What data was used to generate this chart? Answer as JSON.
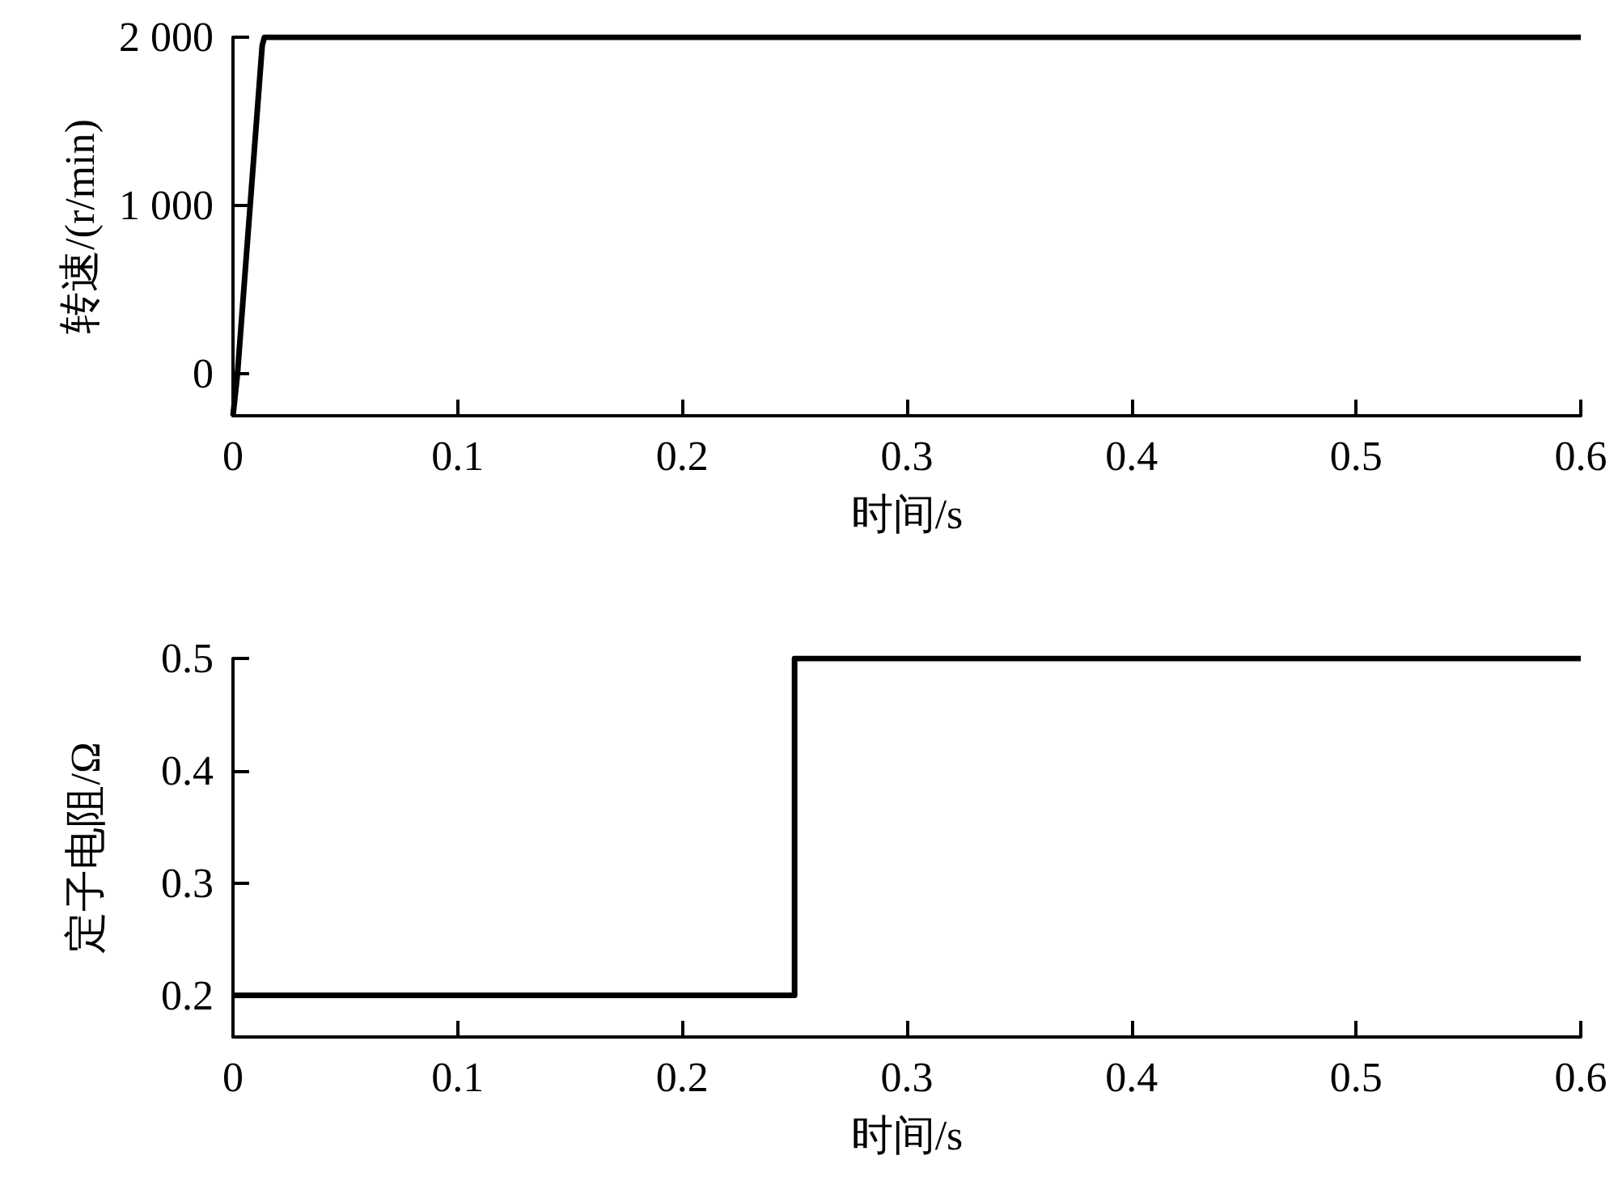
{
  "chart_data": [
    {
      "type": "line",
      "xlabel": "时间/s",
      "ylabel": "转速/(r/min)",
      "xlim": [
        0,
        0.6
      ],
      "xticks": [
        0,
        0.1,
        0.2,
        0.3,
        0.4,
        0.5,
        0.6
      ],
      "ylim": [
        -250,
        2000
      ],
      "yticks": [
        {
          "value": 0,
          "label": "0"
        },
        {
          "value": 1000,
          "label": "1 000"
        },
        {
          "value": 2000,
          "label": "2 000"
        }
      ],
      "grid": false,
      "marker": "none",
      "line_style": "solid",
      "series": [
        {
          "color": "#000000",
          "x": [
            0,
            0.002,
            0.013,
            0.014,
            0.6
          ],
          "values": [
            -250,
            0,
            1950,
            2000,
            2000
          ]
        }
      ]
    },
    {
      "type": "line",
      "xlabel": "时间/s",
      "ylabel": "定子电阻/Ω",
      "xlim": [
        0,
        0.6
      ],
      "xticks": [
        0,
        0.1,
        0.2,
        0.3,
        0.4,
        0.5,
        0.6
      ],
      "ylim": [
        0.163,
        0.5
      ],
      "yticks": [
        0.2,
        0.3,
        0.4,
        0.5
      ],
      "grid": false,
      "marker": "none",
      "line_style": "solid",
      "series": [
        {
          "color": "#000000",
          "x": [
            0,
            0.25,
            0.25,
            0.6
          ],
          "values": [
            0.2,
            0.2,
            0.5,
            0.5
          ]
        }
      ]
    }
  ]
}
